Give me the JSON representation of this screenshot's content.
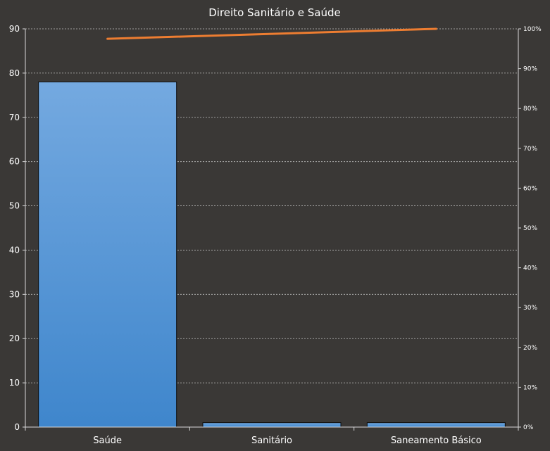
{
  "chart_data": {
    "type": "bar",
    "title": "Direito  Sanitário  e Saúde",
    "categories": [
      "Saúde",
      "Sanitário",
      "Saneamento Básico"
    ],
    "values": [
      78,
      1,
      1
    ],
    "ylim": [
      0,
      90
    ],
    "yticks": [
      0,
      10,
      20,
      30,
      40,
      50,
      60,
      70,
      80,
      90
    ],
    "secondary_axis": {
      "ticks": [
        "0%",
        "10%",
        "20%",
        "30%",
        "40%",
        "50%",
        "60%",
        "70%",
        "80%",
        "90%",
        "100%"
      ],
      "range": [
        0,
        100
      ]
    },
    "cumulative_percent": [
      97.5,
      98.75,
      100
    ],
    "grid": true,
    "legend": "none",
    "colors": {
      "background": "#3a3836",
      "bar_top": "#74a9e0",
      "bar_bottom": "#3f86cc",
      "bar_edge": "#0d0d0d",
      "line": "#ed7d31",
      "grid": "#bfbfbf",
      "axis": "#d9d9d9",
      "text": "#ffffff"
    }
  }
}
